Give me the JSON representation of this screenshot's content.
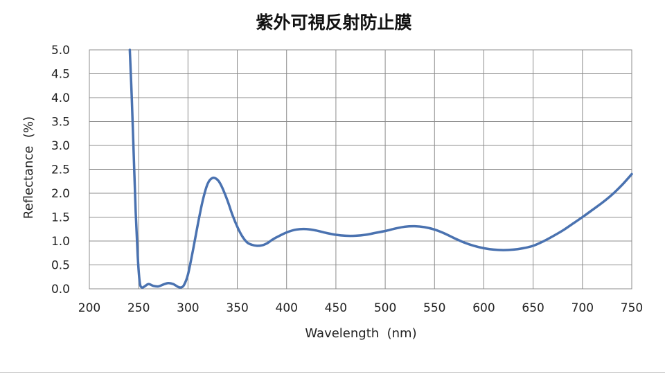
{
  "chart_data": {
    "type": "line",
    "title": "紫外可視反射防止膜",
    "xlabel": "Wavelength  (nm)",
    "ylabel": "Reflectance  (%)",
    "xlim": [
      200,
      750
    ],
    "ylim": [
      0,
      5
    ],
    "xticks": [
      200,
      250,
      300,
      350,
      400,
      450,
      500,
      550,
      600,
      650,
      700,
      750
    ],
    "yticks": [
      "0.0",
      "0.5",
      "1.0",
      "1.5",
      "2.0",
      "2.5",
      "3.0",
      "3.5",
      "4.0",
      "4.5",
      "5.0"
    ],
    "grid": true,
    "line_color": "#4a72b0",
    "series": [
      {
        "x": [
          241,
          243,
          245,
          247,
          249,
          251,
          253,
          256,
          260,
          265,
          270,
          275,
          280,
          285,
          290,
          293,
          296,
          300,
          305,
          310,
          315,
          320,
          325,
          330,
          334,
          340,
          345,
          350,
          355,
          360,
          365,
          370,
          375,
          380,
          385,
          390,
          400,
          410,
          420,
          430,
          440,
          450,
          460,
          470,
          480,
          490,
          500,
          510,
          520,
          530,
          540,
          550,
          560,
          570,
          580,
          590,
          600,
          610,
          620,
          630,
          640,
          650,
          660,
          670,
          680,
          690,
          700,
          710,
          720,
          730,
          740,
          750
        ],
        "y": [
          5.0,
          4.0,
          2.8,
          1.6,
          0.7,
          0.15,
          0.03,
          0.05,
          0.1,
          0.06,
          0.05,
          0.09,
          0.12,
          0.1,
          0.04,
          0.03,
          0.08,
          0.3,
          0.8,
          1.35,
          1.85,
          2.2,
          2.32,
          2.28,
          2.15,
          1.85,
          1.55,
          1.3,
          1.1,
          0.97,
          0.92,
          0.9,
          0.91,
          0.95,
          1.02,
          1.08,
          1.18,
          1.24,
          1.25,
          1.22,
          1.17,
          1.13,
          1.11,
          1.11,
          1.13,
          1.17,
          1.21,
          1.26,
          1.3,
          1.31,
          1.29,
          1.24,
          1.16,
          1.06,
          0.97,
          0.9,
          0.85,
          0.82,
          0.81,
          0.82,
          0.85,
          0.9,
          0.99,
          1.1,
          1.22,
          1.36,
          1.5,
          1.65,
          1.8,
          1.97,
          2.17,
          2.4
        ]
      }
    ]
  }
}
